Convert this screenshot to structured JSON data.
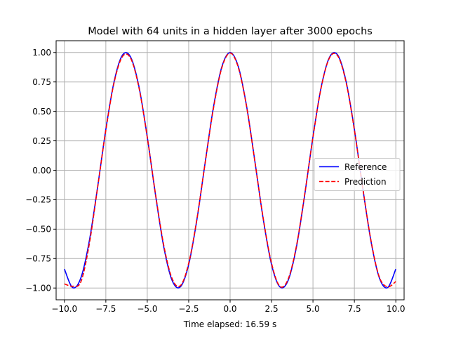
{
  "chart_data": {
    "type": "line",
    "title": "Model with 64 units in a hidden layer after 3000 epochs",
    "xlabel": "Time elapsed: 16.59 s",
    "ylabel": "",
    "xlim": [
      -10.5,
      10.5
    ],
    "ylim": [
      -1.1,
      1.1
    ],
    "x_ticks": [
      -10.0,
      -7.5,
      -5.0,
      -2.5,
      0.0,
      2.5,
      5.0,
      7.5,
      10.0
    ],
    "x_tick_labels": [
      "−10.0",
      "−7.5",
      "−5.0",
      "−2.5",
      "0.0",
      "2.5",
      "5.0",
      "7.5",
      "10.0"
    ],
    "y_ticks": [
      -1.0,
      -0.75,
      -0.5,
      -0.25,
      0.0,
      0.25,
      0.5,
      0.75,
      1.0
    ],
    "y_tick_labels": [
      "−1.00",
      "−0.75",
      "−0.50",
      "−0.25",
      "0.00",
      "0.25",
      "0.50",
      "0.75",
      "1.00"
    ],
    "grid": true,
    "legend_position": "center-right",
    "series": [
      {
        "name": "Reference",
        "color": "#0000ff",
        "dash": "solid",
        "x": [
          -10.0,
          -9.5,
          -9.0,
          -8.5,
          -8.0,
          -7.5,
          -7.0,
          -6.5,
          -6.0,
          -5.5,
          -5.0,
          -4.5,
          -4.0,
          -3.5,
          -3.0,
          -2.5,
          -2.0,
          -1.5,
          -1.0,
          -0.5,
          0.0,
          0.5,
          1.0,
          1.5,
          2.0,
          2.5,
          3.0,
          3.5,
          4.0,
          4.5,
          5.0,
          5.5,
          6.0,
          6.5,
          7.0,
          7.5,
          8.0,
          8.5,
          9.0,
          9.5,
          10.0
        ],
        "y": [
          -0.839,
          -0.997,
          -0.911,
          -0.602,
          -0.146,
          0.347,
          0.754,
          0.977,
          0.96,
          0.709,
          0.284,
          -0.211,
          -0.654,
          -0.936,
          -0.99,
          -0.801,
          -0.416,
          0.071,
          0.54,
          0.878,
          1.0,
          0.878,
          0.54,
          0.071,
          -0.416,
          -0.801,
          -0.99,
          -0.936,
          -0.654,
          -0.211,
          0.284,
          0.709,
          0.96,
          0.977,
          0.754,
          0.347,
          -0.146,
          -0.602,
          -0.911,
          -0.997,
          -0.839
        ]
      },
      {
        "name": "Prediction",
        "color": "#ff0000",
        "dash": "dashed",
        "x": [
          -10.0,
          -9.5,
          -9.0,
          -8.5,
          -8.0,
          -7.5,
          -7.0,
          -6.5,
          -6.0,
          -5.5,
          -5.0,
          -4.5,
          -4.0,
          -3.5,
          -3.0,
          -2.5,
          -2.0,
          -1.5,
          -1.0,
          -0.5,
          0.0,
          0.5,
          1.0,
          1.5,
          2.0,
          2.5,
          3.0,
          3.5,
          4.0,
          4.5,
          5.0,
          5.5,
          6.0,
          6.5,
          7.0,
          7.5,
          8.0,
          8.5,
          9.0,
          9.5,
          10.0
        ],
        "y": [
          -0.965,
          -0.985,
          -0.945,
          -0.628,
          -0.15,
          0.34,
          0.745,
          0.965,
          0.95,
          0.7,
          0.28,
          -0.205,
          -0.64,
          -0.92,
          -0.98,
          -0.79,
          -0.41,
          0.068,
          0.53,
          0.87,
          0.995,
          0.87,
          0.535,
          0.068,
          -0.41,
          -0.79,
          -0.985,
          -0.925,
          -0.645,
          -0.205,
          0.28,
          0.705,
          0.955,
          0.97,
          0.745,
          0.342,
          -0.145,
          -0.595,
          -0.905,
          -0.99,
          -0.945
        ]
      }
    ]
  }
}
